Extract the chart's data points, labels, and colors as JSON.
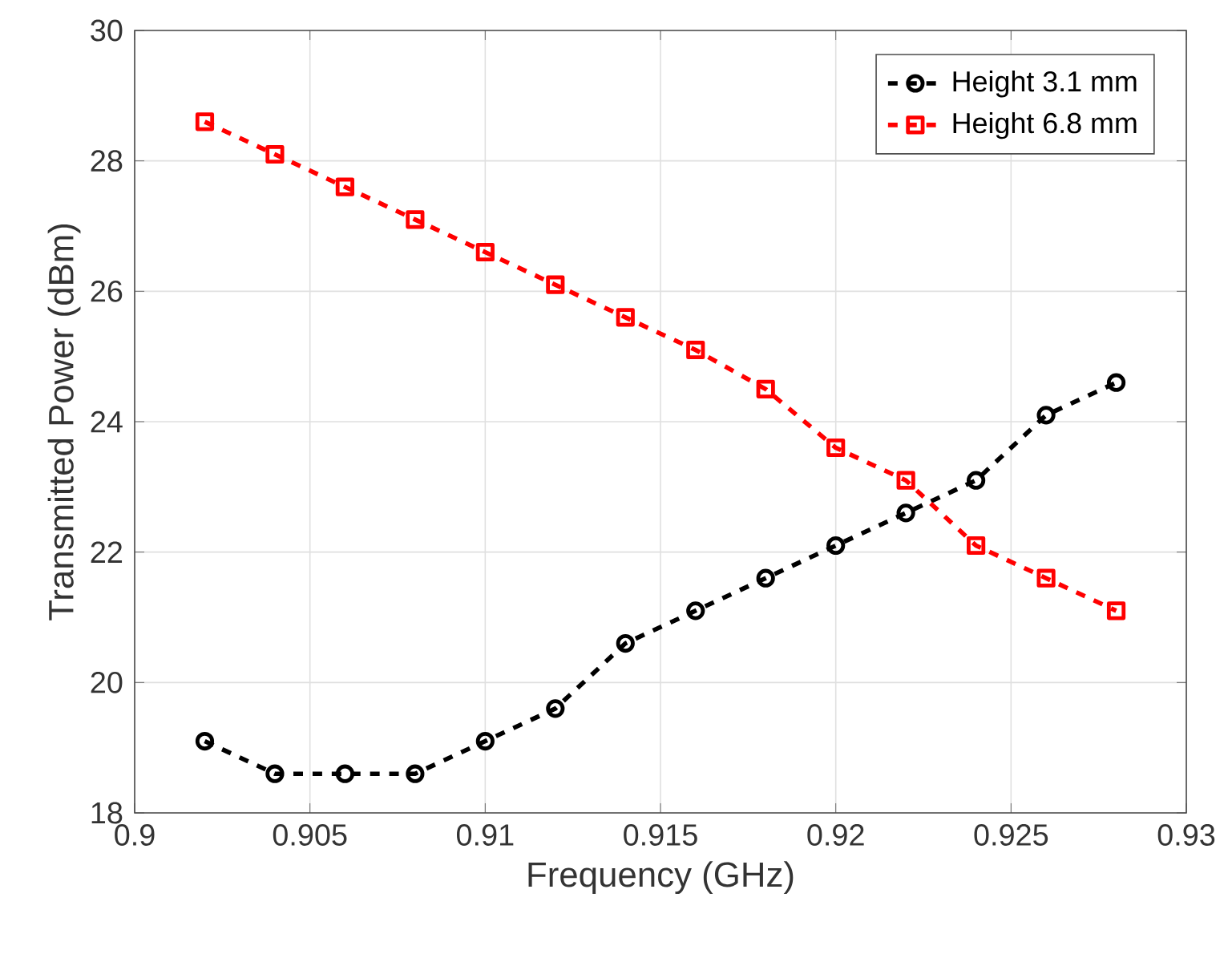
{
  "chart_data": {
    "type": "line",
    "xlabel": "Frequency (GHz)",
    "ylabel": "Transmitted Power (dBm)",
    "x": [
      0.902,
      0.904,
      0.906,
      0.908,
      0.91,
      0.912,
      0.914,
      0.916,
      0.918,
      0.92,
      0.922,
      0.924,
      0.926,
      0.928
    ],
    "series": [
      {
        "name": "Height 3.1 mm",
        "color": "#000000",
        "marker": "circle",
        "values": [
          19.1,
          18.6,
          18.6,
          18.6,
          19.1,
          19.6,
          20.6,
          21.1,
          21.6,
          22.1,
          22.6,
          23.1,
          24.1,
          24.6
        ]
      },
      {
        "name": "Height 6.8 mm",
        "color": "#ff0000",
        "marker": "square",
        "values": [
          28.6,
          28.1,
          27.6,
          27.1,
          26.6,
          26.1,
          25.6,
          25.1,
          24.5,
          23.6,
          23.1,
          22.1,
          21.6,
          21.1
        ]
      }
    ],
    "xlim": [
      0.9,
      0.93
    ],
    "xticks": [
      0.9,
      0.905,
      0.91,
      0.915,
      0.92,
      0.925,
      0.93
    ],
    "ylim": [
      18,
      30
    ],
    "yticks": [
      18,
      20,
      22,
      24,
      26,
      28,
      30
    ],
    "grid": true,
    "legend": "top right",
    "line_style": "dashed"
  }
}
